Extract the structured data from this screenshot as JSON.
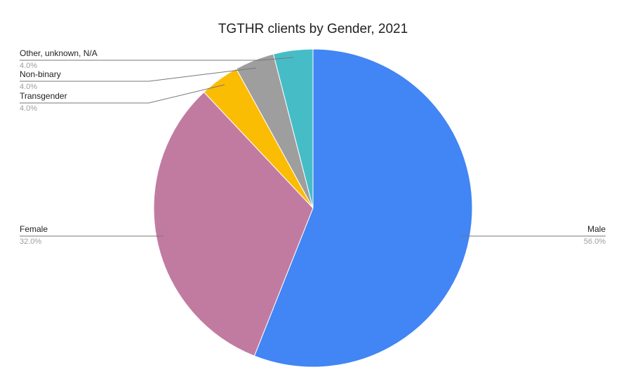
{
  "chart_data": {
    "type": "pie",
    "title": "TGTHR clients by Gender, 2021",
    "categories": [
      "Male",
      "Female",
      "Transgender",
      "Non-binary",
      "Other, unknown, N/A"
    ],
    "values": [
      56,
      32,
      4,
      4,
      4
    ],
    "value_labels": [
      "56.0%",
      "32.0%",
      "4.0%",
      "4.0%",
      "4.0%"
    ],
    "colors": [
      "#4285f4",
      "#c27ba0",
      "#fbbc04",
      "#9e9e9e",
      "#46bdc6"
    ]
  }
}
